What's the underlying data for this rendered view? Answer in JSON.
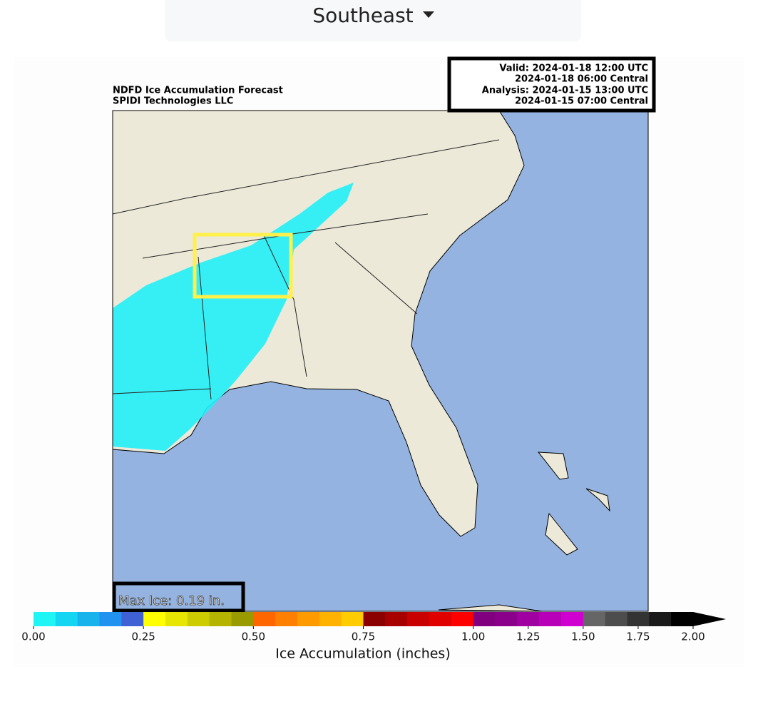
{
  "header": {
    "region": "Southeast"
  },
  "map": {
    "title": [
      "NDFD Ice Accumulation Forecast",
      "SPIDI Technologies LLC"
    ],
    "valid": [
      "Valid: 2024-01-18 12:00 UTC",
      "2024-01-18 06:00 Central",
      "Analysis: 2024-01-15 13:00 UTC",
      "2024-01-15 07:00 Central"
    ],
    "max_ice": "Max Ice: 0.19 in."
  },
  "colorbar": {
    "label": "Ice Accumulation (inches)",
    "bounds": [
      0,
      0.05,
      0.1,
      0.15,
      0.2,
      0.25,
      0.3,
      0.35,
      0.4,
      0.45,
      0.5,
      0.55,
      0.6,
      0.65,
      0.7,
      0.75,
      0.8,
      0.85,
      0.9,
      0.95,
      1,
      1.1,
      1.2,
      1.3,
      1.4,
      1.5,
      1.6,
      1.7,
      1.8,
      1.9,
      2
    ],
    "colors": [
      "#1ff5f5",
      "#14d6f2",
      "#18b2ec",
      "#2192f0",
      "#4060d6",
      "#ffff00",
      "#e6e600",
      "#cccc00",
      "#b3b300",
      "#999900",
      "#ff6600",
      "#ff8000",
      "#ff9a00",
      "#ffb300",
      "#ffcc00",
      "#8b0000",
      "#a80000",
      "#c80000",
      "#e00000",
      "#ff0000",
      "#800080",
      "#8b008b",
      "#a000a0",
      "#b800b8",
      "#d000d0",
      "#666666",
      "#4d4d4d",
      "#333333",
      "#1a1a1a",
      "#000000"
    ],
    "ticks": [
      {
        "value": 0,
        "label": "0.00"
      },
      {
        "value": 0.25,
        "label": "0.25"
      },
      {
        "value": 0.5,
        "label": "0.50"
      },
      {
        "value": 0.75,
        "label": "0.75"
      },
      {
        "value": 1,
        "label": "1.00"
      },
      {
        "value": 1.25,
        "label": "1.25"
      },
      {
        "value": 1.5,
        "label": "1.50"
      },
      {
        "value": 1.75,
        "label": "1.75"
      },
      {
        "value": 2,
        "label": "2.00"
      }
    ]
  }
}
